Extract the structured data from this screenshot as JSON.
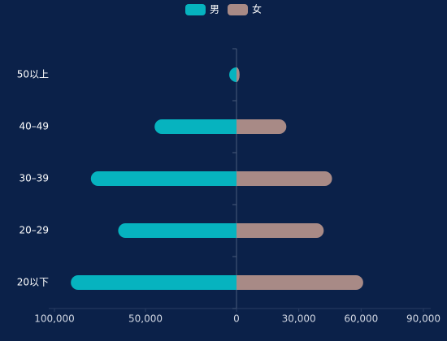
{
  "chart_data": {
    "type": "butterfly",
    "categories": [
      "20以下",
      "20–29",
      "30–39",
      "40–49",
      "50以上"
    ],
    "series": [
      {
        "name": "男",
        "color": "#06b3bf",
        "values": [
          91000,
          65000,
          80000,
          45000,
          4000
        ]
      },
      {
        "name": "女",
        "color": "#a88a86",
        "values": [
          61000,
          42000,
          46000,
          24000,
          1500
        ]
      }
    ],
    "xlim": [
      0,
      100000
    ],
    "xticks": [
      0,
      {
        "value": 50000,
        "label": "50,000"
      },
      {
        "value": 100000,
        "label": "100,000"
      }
    ],
    "x2lim": [
      0,
      90000
    ],
    "x2ticks": [
      {
        "value": 30000,
        "label": "30,000"
      },
      {
        "value": 60000,
        "label": "60,000"
      },
      {
        "value": 90000,
        "label": "90,000"
      }
    ]
  }
}
